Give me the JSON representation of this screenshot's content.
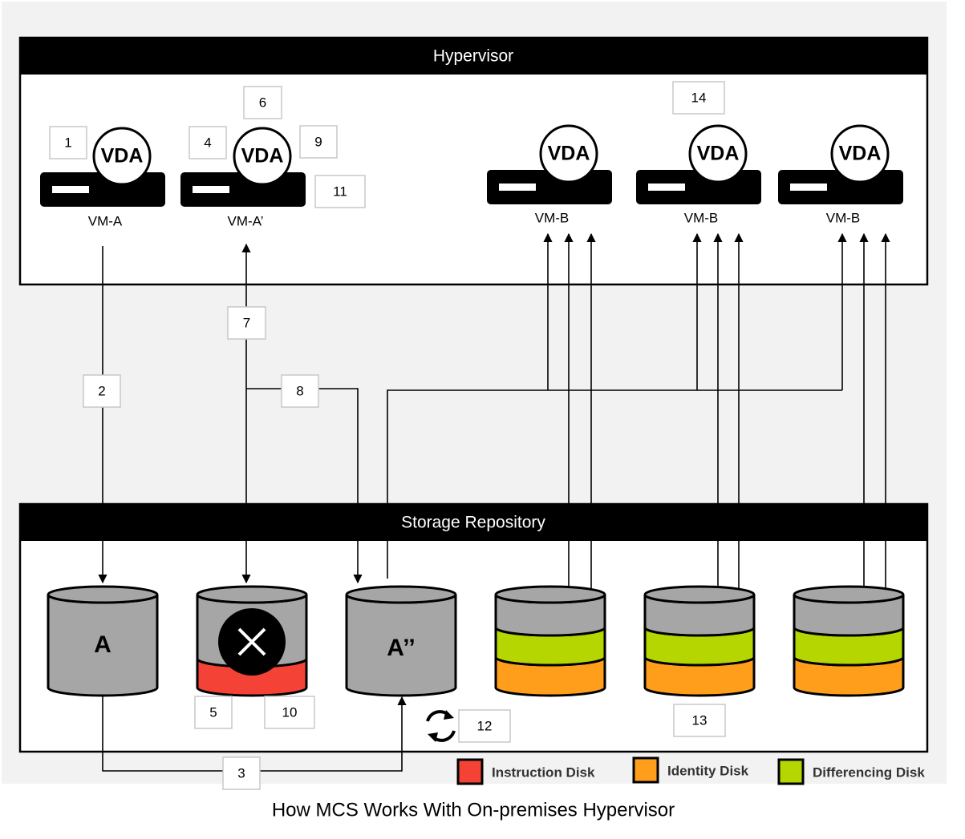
{
  "hypervisor": {
    "title": "Hypervisor"
  },
  "storage": {
    "title": "Storage Repository"
  },
  "vms": [
    {
      "badge": "VDA",
      "label": "VM-A"
    },
    {
      "badge": "VDA",
      "label": "VM-A’"
    },
    {
      "badge": "VDA",
      "label": "VM-B"
    },
    {
      "badge": "VDA",
      "label": "VM-B"
    },
    {
      "badge": "VDA",
      "label": "VM-B"
    }
  ],
  "disks": [
    {
      "label": "A"
    },
    {
      "label": "A’’"
    }
  ],
  "steps": [
    "1",
    "2",
    "3",
    "4",
    "5",
    "6",
    "7",
    "8",
    "9",
    "10",
    "11",
    "12",
    "13",
    "14"
  ],
  "legend": [
    {
      "label": "Instruction Disk",
      "color": "#f44336"
    },
    {
      "label": "Identity Disk",
      "color": "#ff9e1a"
    },
    {
      "label": "Differencing Disk",
      "color": "#b5d600"
    }
  ],
  "caption": "How MCS Works With On-premises Hypervisor"
}
